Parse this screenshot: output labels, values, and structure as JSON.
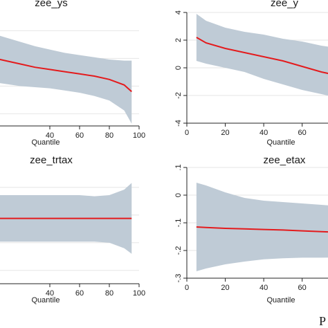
{
  "figure": {
    "corner_text": "P"
  },
  "colors": {
    "band": "#bfcbd6",
    "line": "#e41a1c",
    "grid": "#e6e6e6",
    "axis": "#222222",
    "background": "#ffffff"
  },
  "chart_data": [
    {
      "type": "area",
      "title": "zee_ys",
      "xlabel": "Quantile",
      "ylabel": "",
      "xticks": [
        40,
        60,
        80,
        100
      ],
      "series": [
        {
          "x": [
            0,
            10,
            20,
            30,
            40,
            50,
            60,
            70,
            80,
            90,
            95
          ],
          "y": [
            0.62,
            0.59,
            0.56,
            0.53,
            0.51,
            0.49,
            0.47,
            0.45,
            0.42,
            0.37,
            0.31
          ],
          "lower": [
            0.4,
            0.38,
            0.36,
            0.35,
            0.34,
            0.32,
            0.3,
            0.27,
            0.23,
            0.14,
            0.02
          ],
          "upper": [
            0.84,
            0.8,
            0.76,
            0.72,
            0.69,
            0.66,
            0.64,
            0.62,
            0.6,
            0.59,
            0.59
          ]
        }
      ]
    },
    {
      "type": "area",
      "title": "zee_y",
      "xlabel": "Quantile",
      "ylabel": "",
      "xticks": [
        0,
        20,
        40,
        60
      ],
      "yticks": [
        -4,
        -2,
        0,
        2,
        4
      ],
      "ylim": [
        -4,
        4
      ],
      "series": [
        {
          "x": [
            5,
            10,
            20,
            30,
            40,
            50,
            60,
            70,
            80
          ],
          "y": [
            2.2,
            1.8,
            1.4,
            1.1,
            0.8,
            0.5,
            0.1,
            -0.3,
            -0.6
          ],
          "lower": [
            0.5,
            0.3,
            0.0,
            -0.3,
            -0.8,
            -1.2,
            -1.6,
            -1.9,
            -2.2
          ],
          "upper": [
            3.9,
            3.4,
            2.9,
            2.6,
            2.4,
            2.1,
            1.9,
            1.6,
            1.4
          ]
        }
      ]
    },
    {
      "type": "area",
      "title": "zee_trtax",
      "xlabel": "Quantile",
      "ylabel": "",
      "xticks": [
        40,
        60,
        80,
        100
      ],
      "series": [
        {
          "x": [
            0,
            10,
            20,
            30,
            40,
            50,
            60,
            70,
            80,
            90,
            95
          ],
          "y": [
            0.59,
            0.59,
            0.59,
            0.59,
            0.59,
            0.59,
            0.59,
            0.59,
            0.59,
            0.59,
            0.59
          ],
          "lower": [
            0.38,
            0.38,
            0.38,
            0.38,
            0.38,
            0.38,
            0.38,
            0.38,
            0.37,
            0.32,
            0.27
          ],
          "upper": [
            0.8,
            0.8,
            0.8,
            0.8,
            0.8,
            0.8,
            0.8,
            0.79,
            0.8,
            0.85,
            0.91
          ]
        }
      ]
    },
    {
      "type": "area",
      "title": "zee_etax",
      "xlabel": "Quantile",
      "ylabel": "",
      "xticks": [
        0,
        20,
        40,
        60
      ],
      "yticks": [
        -0.3,
        -0.2,
        -0.1,
        0,
        0.1
      ],
      "ylim": [
        -0.3,
        0.1
      ],
      "series": [
        {
          "x": [
            5,
            10,
            20,
            30,
            40,
            50,
            60,
            70,
            80
          ],
          "y": [
            -0.115,
            -0.117,
            -0.12,
            -0.122,
            -0.124,
            -0.126,
            -0.129,
            -0.132,
            -0.134
          ],
          "lower": [
            -0.275,
            -0.265,
            -0.25,
            -0.24,
            -0.232,
            -0.228,
            -0.226,
            -0.226,
            -0.225
          ],
          "upper": [
            0.045,
            0.035,
            0.01,
            -0.01,
            -0.02,
            -0.025,
            -0.03,
            -0.035,
            -0.04
          ]
        }
      ]
    }
  ]
}
